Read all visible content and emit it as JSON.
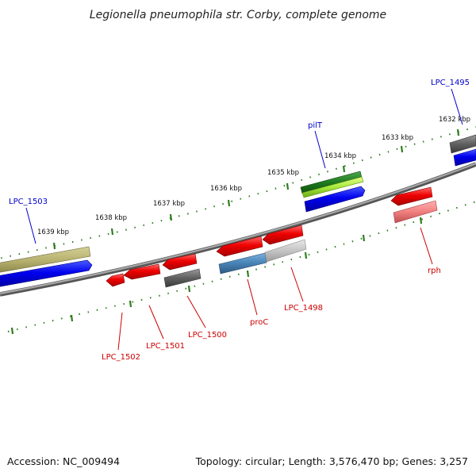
{
  "title": "Legionella pneumophila str. Corby, complete genome",
  "footer": {
    "accession": "Accession: NC_009494",
    "summary": "Topology: circular; Length: 3,576,470 bp; Genes: 3,257"
  },
  "ticks": [
    "1632 kbp",
    "1633 kbp",
    "1634 kbp",
    "1635 kbp",
    "1636 kbp",
    "1637 kbp",
    "1638 kbp",
    "1639 kbp"
  ],
  "labels": {
    "forward": [
      "LPC_1495",
      "pilT",
      "LPC_1503"
    ],
    "reverse": [
      "rph",
      "LPC_1498",
      "proC",
      "LPC_1500",
      "LPC_1501",
      "LPC_1502"
    ]
  },
  "colors": {
    "forward_label": "#0000cc",
    "reverse_label": "#cc0000",
    "backbone": "#888888",
    "tick": "#2e7d1e"
  }
}
